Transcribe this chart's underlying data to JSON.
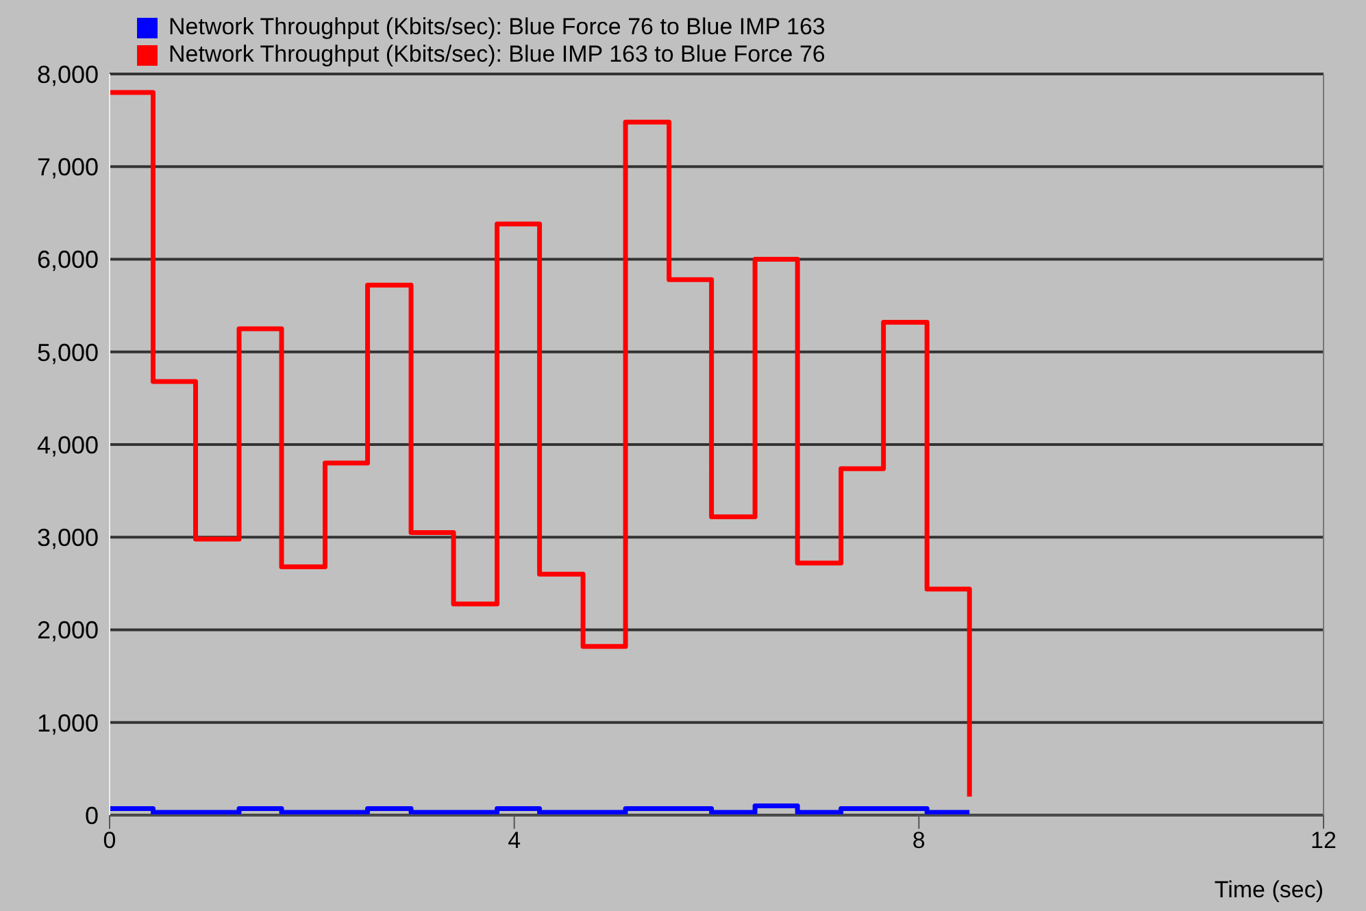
{
  "chart_data": {
    "type": "step",
    "xlabel": "Time (sec)",
    "legend": "top left",
    "grid": "y",
    "line_style": "solid",
    "marker": "none",
    "xlim": [
      0,
      12
    ],
    "xticks": [
      0,
      4,
      8,
      12
    ],
    "ylim": [
      0,
      8000
    ],
    "yticks": [
      0,
      {
        "value": 1000,
        "label": "1,000"
      },
      {
        "value": 2000,
        "label": "2,000"
      },
      {
        "value": 3000,
        "label": "3,000"
      },
      {
        "value": 4000,
        "label": "4,000"
      },
      {
        "value": 5000,
        "label": "5,000"
      },
      {
        "value": 6000,
        "label": "6,000"
      },
      {
        "value": 7000,
        "label": "7,000"
      },
      {
        "value": 8000,
        "label": "8,000"
      }
    ],
    "x": [
      0,
      0.43,
      0.85,
      1.28,
      1.7,
      2.13,
      2.55,
      2.98,
      3.4,
      3.83,
      4.25,
      4.68,
      5.1,
      5.53,
      5.95,
      6.38,
      6.8,
      7.23,
      7.65,
      8.08,
      8.5
    ],
    "series": [
      {
        "name": "Network Throughput (Kbits/sec): Blue Force 76 to Blue IMP 163",
        "color": "#0000ff",
        "values": [
          70,
          30,
          30,
          70,
          30,
          30,
          70,
          30,
          30,
          70,
          30,
          30,
          70,
          70,
          30,
          100,
          30,
          70,
          70,
          30,
          30
        ]
      },
      {
        "name": "Network Throughput (Kbits/sec): Blue IMP 163 to Blue Force 76",
        "color": "#ff0000",
        "values": [
          7800,
          4680,
          2980,
          5250,
          2680,
          3800,
          5720,
          3050,
          2280,
          6380,
          2600,
          1820,
          7480,
          5780,
          3220,
          6000,
          2720,
          3740,
          5320,
          2440,
          200
        ]
      }
    ]
  }
}
